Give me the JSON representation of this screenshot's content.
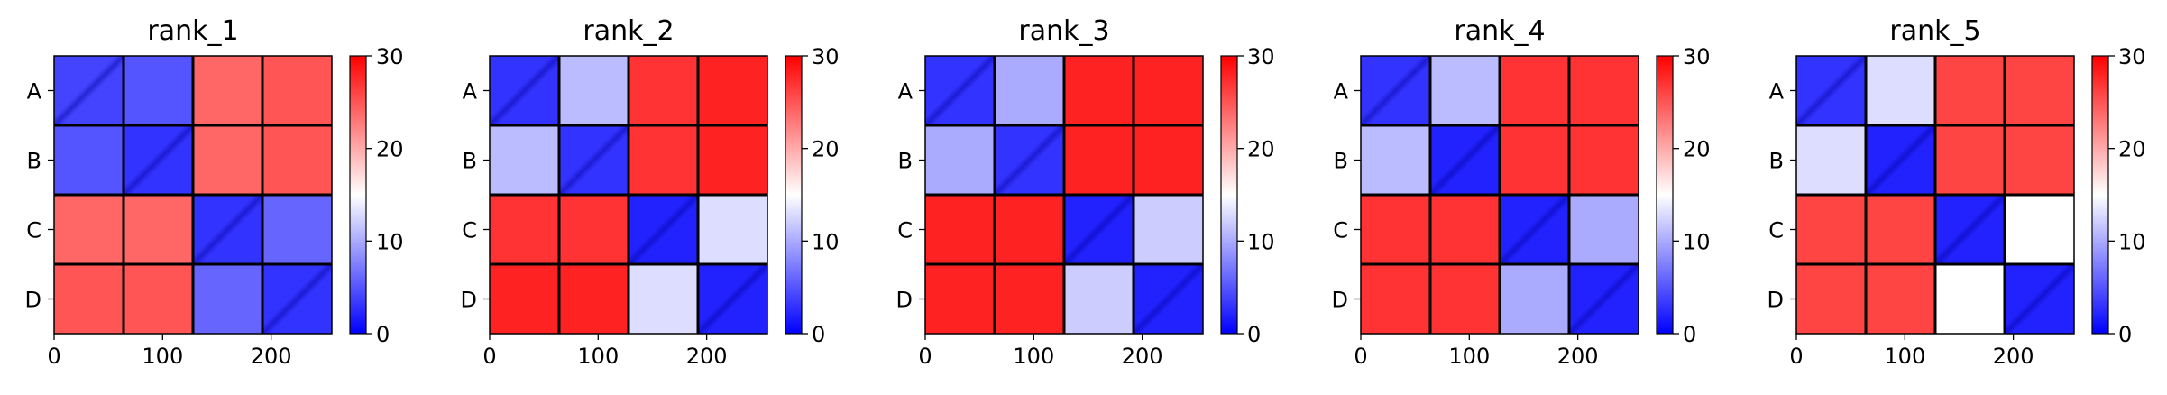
{
  "chart_data": {
    "type": "heatmap",
    "colormap": "bwr",
    "colors": {
      "low": "#0000ff",
      "mid": "#ffffff",
      "high": "#ff0000",
      "boundary": "#000000"
    },
    "block_labels": [
      "A",
      "B",
      "C",
      "D"
    ],
    "block_size": 64,
    "xlim": [
      0,
      256
    ],
    "xticks": [
      0,
      100,
      200
    ],
    "x_tick_labels": [
      "0",
      "100",
      "200"
    ],
    "colorbar": {
      "vmin": 0,
      "vmax": 30,
      "ticks": [
        0,
        10,
        20,
        30
      ],
      "tick_labels": [
        "0",
        "10",
        "20",
        "30"
      ]
    },
    "panels": [
      {
        "title": "rank_1",
        "block_means": [
          [
            4,
            5,
            24,
            25
          ],
          [
            5,
            3,
            24,
            25
          ],
          [
            24,
            24,
            3,
            6
          ],
          [
            25,
            25,
            6,
            3
          ]
        ]
      },
      {
        "title": "rank_2",
        "block_means": [
          [
            3,
            11,
            27,
            28
          ],
          [
            11,
            3,
            27,
            28
          ],
          [
            27,
            27,
            2,
            13
          ],
          [
            28,
            28,
            13,
            2
          ]
        ]
      },
      {
        "title": "rank_3",
        "block_means": [
          [
            3,
            10,
            28,
            28
          ],
          [
            10,
            3,
            28,
            28
          ],
          [
            28,
            28,
            2,
            12
          ],
          [
            28,
            28,
            12,
            2
          ]
        ]
      },
      {
        "title": "rank_4",
        "block_means": [
          [
            3,
            11,
            27,
            27
          ],
          [
            11,
            2,
            27,
            27
          ],
          [
            27,
            27,
            2,
            10
          ],
          [
            27,
            27,
            10,
            2
          ]
        ]
      },
      {
        "title": "rank_5",
        "block_means": [
          [
            3,
            13,
            26,
            26
          ],
          [
            13,
            2,
            26,
            26
          ],
          [
            26,
            26,
            2,
            15
          ],
          [
            26,
            26,
            15,
            2
          ]
        ]
      }
    ]
  }
}
